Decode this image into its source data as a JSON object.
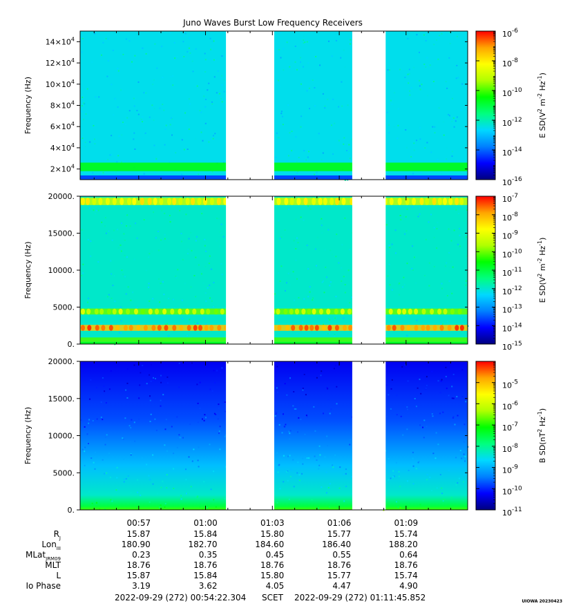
{
  "title": "Juno Waves Burst Low Frequency Receivers",
  "credit": "UIOWA 20230423",
  "palette": [
    "#00007f",
    "#0000ff",
    "#0080ff",
    "#00d8ff",
    "#00ff80",
    "#00ff00",
    "#b0ff00",
    "#ffff00",
    "#ffa500",
    "#ff0000"
  ],
  "chart_data": [
    {
      "type": "heatmap",
      "name": "panel-1",
      "ylabel": "Frequency (Hz)",
      "ylim": [
        10000,
        150000
      ],
      "yticks": [
        {
          "v": 20000,
          "mant": "2×10",
          "exp": "4"
        },
        {
          "v": 40000,
          "mant": "4×10",
          "exp": "4"
        },
        {
          "v": 60000,
          "mant": "6×10",
          "exp": "4"
        },
        {
          "v": 80000,
          "mant": "8×10",
          "exp": "4"
        },
        {
          "v": 100000,
          "mant": "10×10",
          "exp": "4"
        },
        {
          "v": 120000,
          "mant": "12×10",
          "exp": "4"
        },
        {
          "v": 140000,
          "mant": "14×10",
          "exp": "4"
        }
      ],
      "colorbar": {
        "label": "E SD(V",
        "label_sup1": "2",
        "label_mid": " m",
        "label_sup2": "-2",
        "label_mid2": " Hz",
        "label_sup3": "-1",
        "label_end": ")",
        "scale": "log",
        "range": [
          "1e-16",
          "1e-6"
        ],
        "ticks": [
          {
            "mant": "10",
            "exp": "-6"
          },
          {
            "mant": "10",
            "exp": "-8"
          },
          {
            "mant": "10",
            "exp": "-10"
          },
          {
            "mant": "10",
            "exp": "-12"
          },
          {
            "mant": "10",
            "exp": "-14"
          },
          {
            "mant": "10",
            "exp": "-16"
          }
        ]
      },
      "background_level": 0.35,
      "bands": [
        {
          "f0": 10000,
          "f1": 14000,
          "level": 0.15
        },
        {
          "f0": 18000,
          "f1": 26000,
          "level": 0.55
        }
      ]
    },
    {
      "type": "heatmap",
      "name": "panel-2",
      "ylabel": "Frequency (Hz)",
      "ylim": [
        0,
        20000
      ],
      "yticks": [
        {
          "v": 0,
          "label": "0."
        },
        {
          "v": 5000,
          "label": "5000."
        },
        {
          "v": 10000,
          "label": "10000."
        },
        {
          "v": 15000,
          "label": "15000."
        },
        {
          "v": 20000,
          "label": "20000."
        }
      ],
      "colorbar": {
        "label": "E SD(V",
        "label_sup1": "2",
        "label_mid": " m",
        "label_sup2": "-2",
        "label_mid2": " Hz",
        "label_sup3": "-1",
        "label_end": ")",
        "scale": "log",
        "range": [
          "1e-15",
          "1e-7"
        ],
        "ticks": [
          {
            "mant": "10",
            "exp": "-7"
          },
          {
            "mant": "10",
            "exp": "-8"
          },
          {
            "mant": "10",
            "exp": "-9"
          },
          {
            "mant": "10",
            "exp": "-10"
          },
          {
            "mant": "10",
            "exp": "-11"
          },
          {
            "mant": "10",
            "exp": "-12"
          },
          {
            "mant": "10",
            "exp": "-13"
          },
          {
            "mant": "10",
            "exp": "-14"
          },
          {
            "mant": "10",
            "exp": "-15"
          }
        ]
      },
      "background_level": 0.38,
      "bands": [
        {
          "f0": 0,
          "f1": 300,
          "level": 0.55
        },
        {
          "f0": 300,
          "f1": 900,
          "level": 0.6
        },
        {
          "f0": 1800,
          "f1": 2600,
          "level": 0.85
        },
        {
          "f0": 4000,
          "f1": 4800,
          "level": 0.62
        },
        {
          "f0": 18800,
          "f1": 19800,
          "level": 0.7
        }
      ]
    },
    {
      "type": "heatmap",
      "name": "panel-3",
      "ylabel": "Frequency (Hz)",
      "ylim": [
        0,
        20000
      ],
      "yticks": [
        {
          "v": 0,
          "label": "0."
        },
        {
          "v": 5000,
          "label": "5000."
        },
        {
          "v": 10000,
          "label": "10000."
        },
        {
          "v": 15000,
          "label": "15000."
        },
        {
          "v": 20000,
          "label": "20000."
        }
      ],
      "colorbar": {
        "label": "B SD(nT",
        "label_sup1": "2",
        "label_mid": " Hz",
        "label_sup2": "-1",
        "label_mid2": "",
        "label_sup3": "",
        "label_end": ")",
        "scale": "log",
        "range": [
          "1e-11",
          "1e-4"
        ],
        "ticks": [
          {
            "mant": "10",
            "exp": "-5"
          },
          {
            "mant": "10",
            "exp": "-6"
          },
          {
            "mant": "10",
            "exp": "-7"
          },
          {
            "mant": "10",
            "exp": "-8"
          },
          {
            "mant": "10",
            "exp": "-9"
          },
          {
            "mant": "10",
            "exp": "-10"
          },
          {
            "mant": "10",
            "exp": "-11"
          }
        ]
      },
      "gradient": [
        {
          "f": 20000,
          "level": 0.1
        },
        {
          "f": 12000,
          "level": 0.18
        },
        {
          "f": 6000,
          "level": 0.3
        },
        {
          "f": 2000,
          "level": 0.38
        },
        {
          "f": 500,
          "level": 0.5
        },
        {
          "f": 0,
          "level": 0.6
        }
      ]
    }
  ],
  "time_axis": {
    "start": "00:54:22.304",
    "end": "01:11:45.852",
    "ticks": [
      "00:57",
      "01:00",
      "01:03",
      "01:06",
      "01:09"
    ],
    "gaps": [
      [
        "01:00:55",
        "01:03:05"
      ],
      [
        "01:06:35",
        "01:08:05"
      ]
    ]
  },
  "ephemeris": {
    "rows": [
      {
        "name": "R",
        "sub": "J",
        "values": [
          "15.87",
          "15.84",
          "15.80",
          "15.77",
          "15.74"
        ]
      },
      {
        "name": "Lon",
        "sub": "III",
        "values": [
          "180.90",
          "182.70",
          "184.60",
          "186.40",
          "188.20"
        ]
      },
      {
        "name": "MLat",
        "sub": "JRM09",
        "values": [
          "0.23",
          "0.35",
          "0.45",
          "0.55",
          "0.64"
        ]
      },
      {
        "name": "MLT",
        "sub": "",
        "values": [
          "18.76",
          "18.76",
          "18.76",
          "18.76",
          "18.76"
        ]
      },
      {
        "name": "L",
        "sub": "",
        "values": [
          "15.87",
          "15.84",
          "15.80",
          "15.77",
          "15.74"
        ]
      },
      {
        "name": "Io Phase",
        "sub": "",
        "values": [
          "3.19",
          "3.62",
          "4.05",
          "4.47",
          "4.90"
        ]
      }
    ]
  },
  "footer": {
    "start": "2022-09-29 (272) 00:54:22.304",
    "center": "SCET",
    "end": "2022-09-29 (272) 01:11:45.852"
  }
}
